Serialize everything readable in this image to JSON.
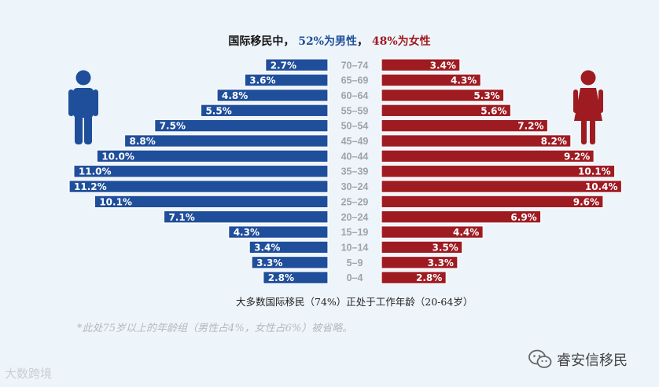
{
  "chart_data": {
    "type": "bar",
    "subtype": "population-pyramid",
    "title": {
      "prefix": "国际移民中，",
      "male_part": "52%为",
      "male_word": "男性",
      "sep": "，",
      "female_part": "48%为",
      "female_word": "女性"
    },
    "categories": [
      "70–74",
      "65–69",
      "60–64",
      "55–59",
      "50–54",
      "45–49",
      "40–44",
      "35–39",
      "30–24",
      "25–29",
      "20–24",
      "15–19",
      "10–14",
      "5–9",
      "0–4"
    ],
    "series": [
      {
        "name": "男性",
        "side": "left",
        "color": "#1f4e9a",
        "values": [
          2.7,
          3.6,
          4.8,
          5.5,
          7.5,
          8.8,
          10.0,
          11.0,
          11.2,
          10.1,
          7.1,
          4.3,
          3.4,
          3.3,
          2.8
        ],
        "labels": [
          "2.7%",
          "3.6%",
          "4.8%",
          "5.5%",
          "7.5%",
          "8.8%",
          "10.0%",
          "11.0%",
          "11.2%",
          "10.1%",
          "7.1%",
          "4.3%",
          "3.4%",
          "3.3%",
          "2.8%"
        ]
      },
      {
        "name": "女性",
        "side": "right",
        "color": "#9e1b22",
        "values": [
          3.4,
          4.3,
          5.3,
          5.6,
          7.2,
          8.2,
          9.2,
          10.1,
          10.4,
          9.6,
          6.9,
          4.4,
          3.5,
          3.3,
          2.8
        ],
        "labels": [
          "3.4%",
          "4.3%",
          "5.3%",
          "5.6%",
          "7.2%",
          "8.2%",
          "9.2%",
          "10.1%",
          "10.4%",
          "9.6%",
          "6.9%",
          "4.4%",
          "3.5%",
          "3.3%",
          "2.8%"
        ]
      }
    ],
    "xlim": [
      0,
      11.2
    ],
    "grid": false,
    "legend": "none"
  },
  "caption": "大多数国际移民（74%）正处于工作年龄（20-64岁）",
  "footnote": "*此处75岁以上的年龄组（男性占4%，女性占6%）被省略。",
  "watermark_left": "大数跨境",
  "watermark_right": "睿安信移民",
  "icons": {
    "male": "male-person-icon",
    "female": "female-person-icon",
    "wechat": "wechat-icon"
  }
}
